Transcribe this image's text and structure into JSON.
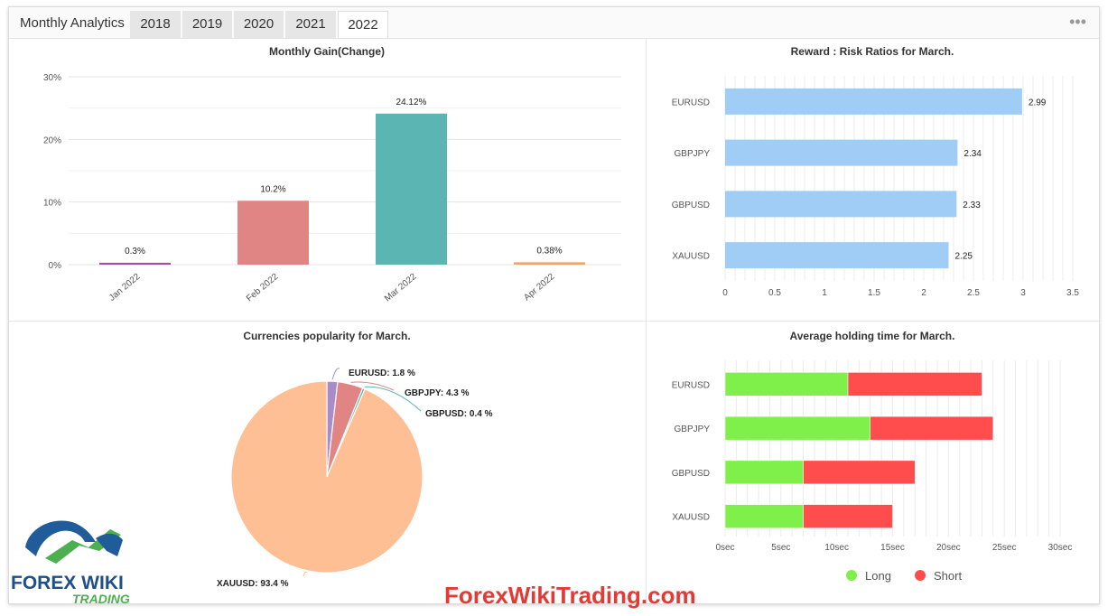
{
  "header": {
    "title": "Monthly Analytics",
    "tabs": [
      "2018",
      "2019",
      "2020",
      "2021",
      "2022"
    ],
    "active_tab": "2022",
    "menu_icon": "more-dots-icon"
  },
  "watermark": "ForexWikiTrading.com",
  "logo": {
    "line1": "FOREX WIKI",
    "line2": "TRADING"
  },
  "colors": {
    "bar_blue": "#9fcdf5",
    "long": "#7ff04a",
    "short": "#ff4d4d",
    "watermark": "#e53935"
  },
  "chart_data": [
    {
      "id": "monthly-gain",
      "type": "bar",
      "title": "Monthly Gain(Change)",
      "categories": [
        "Jan 2022",
        "Feb 2022",
        "Mar 2022",
        "Apr 2022"
      ],
      "values": [
        0.3,
        10.2,
        24.12,
        0.38
      ],
      "value_labels": [
        "0.3%",
        "10.2%",
        "24.12%",
        "0.38%"
      ],
      "colors": [
        "#a64ca6",
        "#e08584",
        "#5bb5b3",
        "#f2a56b"
      ],
      "yticks": [
        "30%",
        "20%",
        "10%",
        "0%"
      ],
      "ylim": [
        0,
        30
      ]
    },
    {
      "id": "reward-risk",
      "type": "bar",
      "orientation": "horizontal",
      "title": "Reward : Risk Ratios for March.",
      "categories": [
        "EURUSD",
        "GBPJPY",
        "GBPUSD",
        "XAUUSD"
      ],
      "values": [
        2.99,
        2.34,
        2.33,
        2.25
      ],
      "value_labels": [
        "2.99",
        "2.34",
        "2.33",
        "2.25"
      ],
      "xticks": [
        "0",
        "0.5",
        "1",
        "1.5",
        "2",
        "2.5",
        "3",
        "3.5"
      ],
      "xlim": [
        0,
        3.5
      ]
    },
    {
      "id": "currencies-popularity",
      "type": "pie",
      "title": "Currencies popularity for March.",
      "slices": [
        {
          "name": "EURUSD",
          "value": 1.8,
          "label": "EURUSD: 1.8 %",
          "color": "#a98bc9"
        },
        {
          "name": "GBPJPY",
          "value": 4.3,
          "label": "GBPJPY: 4.3 %",
          "color": "#e08584"
        },
        {
          "name": "GBPUSD",
          "value": 0.4,
          "label": "GBPUSD: 0.4 %",
          "color": "#5bb5b3"
        },
        {
          "name": "XAUUSD",
          "value": 93.4,
          "label": "XAUUSD: 93.4 %",
          "color": "#ffbf95"
        }
      ]
    },
    {
      "id": "holding-time",
      "type": "bar",
      "orientation": "horizontal",
      "stacked": true,
      "title": "Average holding time for March.",
      "categories": [
        "EURUSD",
        "GBPJPY",
        "GBPUSD",
        "XAUUSD"
      ],
      "series": [
        {
          "name": "Long",
          "values": [
            11,
            13,
            7,
            7
          ]
        },
        {
          "name": "Short",
          "values": [
            12,
            11,
            10,
            8
          ]
        }
      ],
      "xticks": [
        "0sec",
        "5sec",
        "10sec",
        "15sec",
        "20sec",
        "25sec",
        "30sec"
      ],
      "xlim": [
        0,
        30
      ],
      "legend": [
        "Long",
        "Short"
      ],
      "legend_position": "bottom"
    }
  ]
}
